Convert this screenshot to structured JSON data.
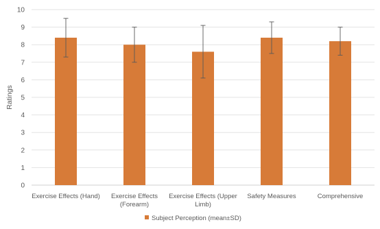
{
  "chart_data": {
    "type": "bar",
    "title": "",
    "xlabel": "",
    "ylabel": "Ratings",
    "ylim": [
      0,
      10
    ],
    "yticks": [
      0,
      1,
      2,
      3,
      4,
      5,
      6,
      7,
      8,
      9,
      10
    ],
    "grid": true,
    "legend_position": "bottom",
    "categories": [
      [
        "Exercise Effects (Hand)"
      ],
      [
        "Exercise Effects",
        "(Forearm)"
      ],
      [
        "Exercise Effects (Upper",
        "Limb)"
      ],
      [
        "Safety Measures"
      ],
      [
        "Comprehensive"
      ]
    ],
    "series": [
      {
        "name": "Subject Perception (mean±SD)",
        "color": "#d77b38",
        "values": [
          8.4,
          8.0,
          7.6,
          8.4,
          8.2
        ],
        "error_low": [
          7.3,
          7.0,
          6.1,
          7.5,
          7.4
        ],
        "error_high": [
          9.5,
          9.0,
          9.1,
          9.3,
          9.0
        ]
      }
    ]
  }
}
